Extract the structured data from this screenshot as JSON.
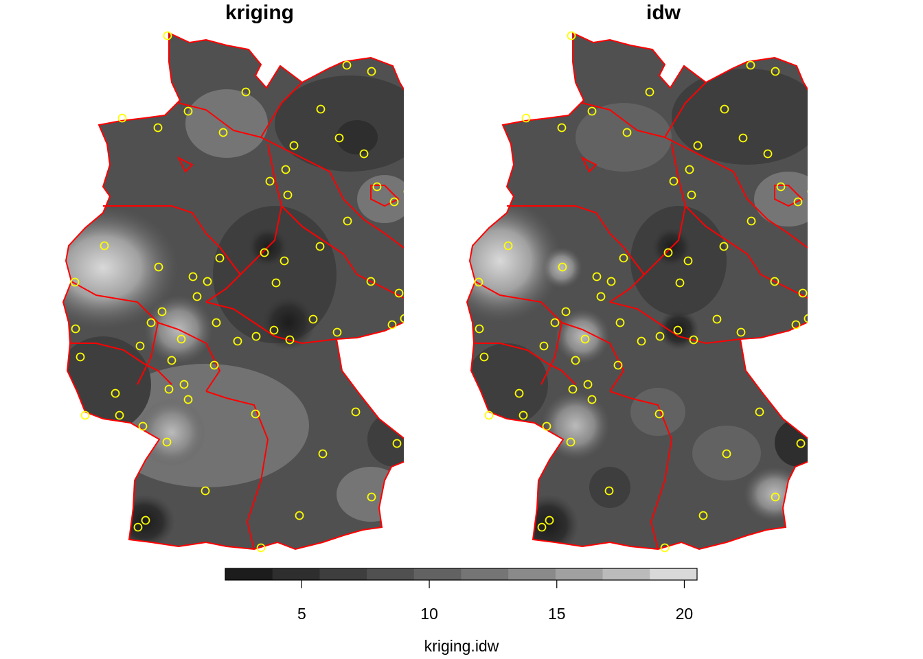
{
  "panels": [
    {
      "title": "kriging"
    },
    {
      "title": "idw"
    }
  ],
  "legend": {
    "title": "kriging.idw",
    "range": [
      2,
      20.5
    ],
    "ticks": [
      5,
      10,
      15,
      20
    ],
    "colors": [
      "#1c1c1c",
      "#2e2e2e",
      "#3e3e3e",
      "#505050",
      "#626262",
      "#757575",
      "#8a8a8a",
      "#a1a1a1",
      "#bbbbbb",
      "#d9d9d9"
    ]
  },
  "colors": {
    "boundary": "#ff0000",
    "station": "#ffff00",
    "background": "#ffffff"
  }
}
